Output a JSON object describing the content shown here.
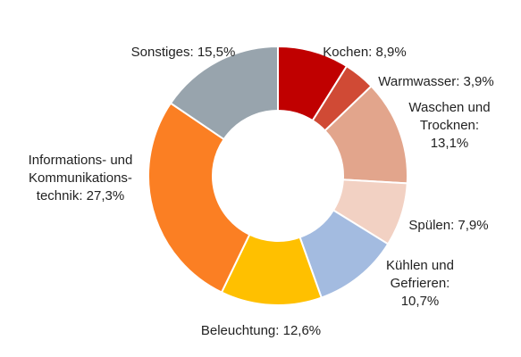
{
  "chart_data": {
    "type": "pie",
    "title": "",
    "donut": true,
    "start_angle_deg": 0,
    "direction": "clockwise",
    "slices": [
      {
        "label_lines": [
          "Kochen: 8,9%"
        ],
        "value": 8.9,
        "color": "#c00000"
      },
      {
        "label_lines": [
          "Warmwasser: 3,9%"
        ],
        "value": 3.9,
        "color": "#d04a35"
      },
      {
        "label_lines": [
          "Waschen und",
          "Trocknen:",
          "13,1%"
        ],
        "value": 13.1,
        "color": "#e2a58c"
      },
      {
        "label_lines": [
          "Spülen: 7,9%"
        ],
        "value": 7.9,
        "color": "#f2d1c3"
      },
      {
        "label_lines": [
          "Kühlen und",
          "Gefrieren:",
          "10,7%"
        ],
        "value": 10.7,
        "color": "#a3bbe0"
      },
      {
        "label_lines": [
          "Beleuchtung: 12,6%"
        ],
        "value": 12.6,
        "color": "#ffc000"
      },
      {
        "label_lines": [
          "Informations- und",
          "Kommunikations-",
          "technik: 27,3%"
        ],
        "value": 27.3,
        "color": "#fb7f23"
      },
      {
        "label_lines": [
          "Sonstiges: 15,5%"
        ],
        "value": 15.5,
        "color": "#98a4ad"
      }
    ]
  }
}
